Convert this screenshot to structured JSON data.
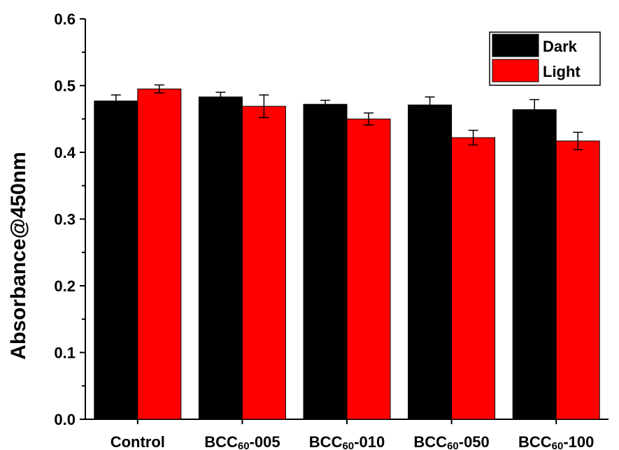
{
  "chart_data": {
    "type": "bar",
    "title": "",
    "xlabel": "",
    "ylabel": "Absorbance@450nm",
    "ylim": [
      0.0,
      0.6
    ],
    "yticks": [
      "0.0",
      "0.1",
      "0.2",
      "0.3",
      "0.4",
      "0.5",
      "0.6"
    ],
    "grid": false,
    "legend_position": "top-right",
    "categories": [
      {
        "prefix": "Control",
        "sub": "",
        "suffix": ""
      },
      {
        "prefix": "BCC",
        "sub": "60",
        "suffix": "-005"
      },
      {
        "prefix": "BCC",
        "sub": "60",
        "suffix": "-010"
      },
      {
        "prefix": "BCC",
        "sub": "60",
        "suffix": "-050"
      },
      {
        "prefix": "BCC",
        "sub": "60",
        "suffix": "-100"
      }
    ],
    "series": [
      {
        "name": "Dark",
        "color": "#000000",
        "values": [
          0.477,
          0.483,
          0.472,
          0.471,
          0.464
        ],
        "errors": [
          0.009,
          0.007,
          0.006,
          0.012,
          0.015
        ]
      },
      {
        "name": "Light",
        "color": "#ff0000",
        "values": [
          0.495,
          0.469,
          0.45,
          0.422,
          0.417
        ],
        "errors": [
          0.006,
          0.017,
          0.009,
          0.011,
          0.013
        ]
      }
    ]
  }
}
